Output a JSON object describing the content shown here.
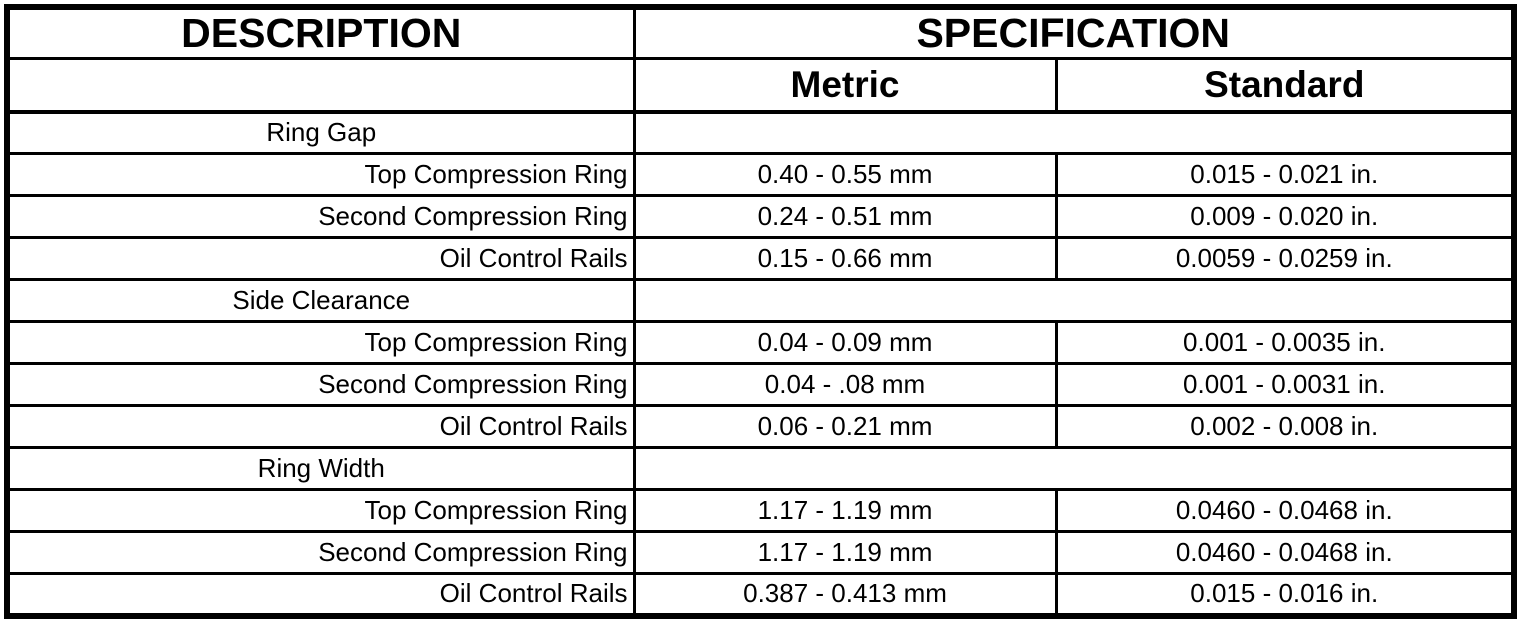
{
  "table": {
    "headers": {
      "description": "DESCRIPTION",
      "specification": "SPECIFICATION",
      "metric": "Metric",
      "standard": "Standard"
    },
    "sections": [
      {
        "title": "Ring Gap",
        "rows": [
          {
            "label": "Top Compression Ring",
            "metric": "0.40 - 0.55 mm",
            "standard": "0.015 - 0.021 in."
          },
          {
            "label": "Second Compression Ring",
            "metric": "0.24 - 0.51 mm",
            "standard": "0.009 - 0.020 in."
          },
          {
            "label": "Oil Control Rails",
            "metric": "0.15 - 0.66 mm",
            "standard": "0.0059 - 0.0259 in."
          }
        ]
      },
      {
        "title": "Side Clearance",
        "rows": [
          {
            "label": "Top Compression Ring",
            "metric": "0.04 - 0.09 mm",
            "standard": "0.001 - 0.0035 in."
          },
          {
            "label": "Second Compression Ring",
            "metric": "0.04 - .08 mm",
            "standard": "0.001 - 0.0031 in."
          },
          {
            "label": "Oil Control Rails",
            "metric": "0.06 - 0.21 mm",
            "standard": "0.002 - 0.008 in."
          }
        ]
      },
      {
        "title": "Ring Width",
        "rows": [
          {
            "label": "Top Compression Ring",
            "metric": "1.17 - 1.19 mm",
            "standard": "0.0460 - 0.0468 in."
          },
          {
            "label": "Second Compression Ring",
            "metric": "1.17 - 1.19 mm",
            "standard": "0.0460 - 0.0468 in."
          },
          {
            "label": "Oil Control Rails",
            "metric": "0.387 - 0.413 mm",
            "standard": "0.015 - 0.016 in."
          }
        ]
      }
    ]
  }
}
